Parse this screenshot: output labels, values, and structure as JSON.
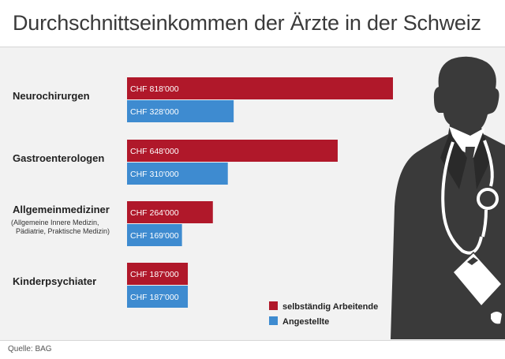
{
  "header": {
    "title": "Durchschnittseinkommen der Ärzte in der Schweiz"
  },
  "footer": {
    "source": "Quelle: BAG"
  },
  "colors": {
    "selbstaendig": "#b0182a",
    "angestellte": "#3e8bd0",
    "silhouette": "#3a3a3a",
    "accent_white": "#ffffff"
  },
  "icons": [
    "doctor-silhouette-icon",
    "stethoscope-icon",
    "clipboard-icon"
  ],
  "chart_data": {
    "type": "bar",
    "orientation": "horizontal",
    "title": "Durchschnittseinkommen der Ärzte in der Schweiz",
    "xlabel": "",
    "ylabel": "",
    "xlim": [
      0,
      818000
    ],
    "grid": false,
    "legend_position": "bottom-right",
    "categories": [
      {
        "name": "Neurochirurgen",
        "sub": []
      },
      {
        "name": "Gastroenterologen",
        "sub": []
      },
      {
        "name": "Allgemeinmediziner",
        "sub": [
          "(Allgemeine Innere Medizin,",
          "Pädiatrie, Praktische Medizin)"
        ]
      },
      {
        "name": "Kinderpsychiater",
        "sub": []
      }
    ],
    "series": [
      {
        "name": "selbständig Arbeitende",
        "values": [
          818000,
          648000,
          264000,
          187000
        ],
        "labels": [
          "CHF 818'000",
          "CHF 648'000",
          "CHF 264'000",
          "CHF 187'000"
        ]
      },
      {
        "name": "Angestellte",
        "values": [
          328000,
          310000,
          169000,
          187000
        ],
        "labels": [
          "CHF 328'000",
          "CHF 310'000",
          "CHF 169'000",
          "CHF 187'000"
        ]
      }
    ]
  }
}
